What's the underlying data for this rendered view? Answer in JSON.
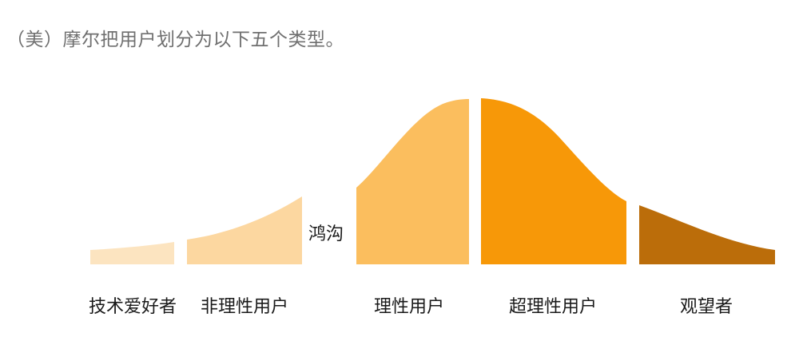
{
  "heading": "（美）摩尔把用户划分为以下五个类型。",
  "chasm_label": "鸿沟",
  "segments": [
    {
      "label": "技术爱好者",
      "color": "#fce4c0"
    },
    {
      "label": "非理性用户",
      "color": "#fcd7a0"
    },
    {
      "label": "理性用户",
      "color": "#fbbe5e"
    },
    {
      "label": "超理性用户",
      "color": "#f79808"
    },
    {
      "label": "观望者",
      "color": "#bb6d0a"
    }
  ]
}
